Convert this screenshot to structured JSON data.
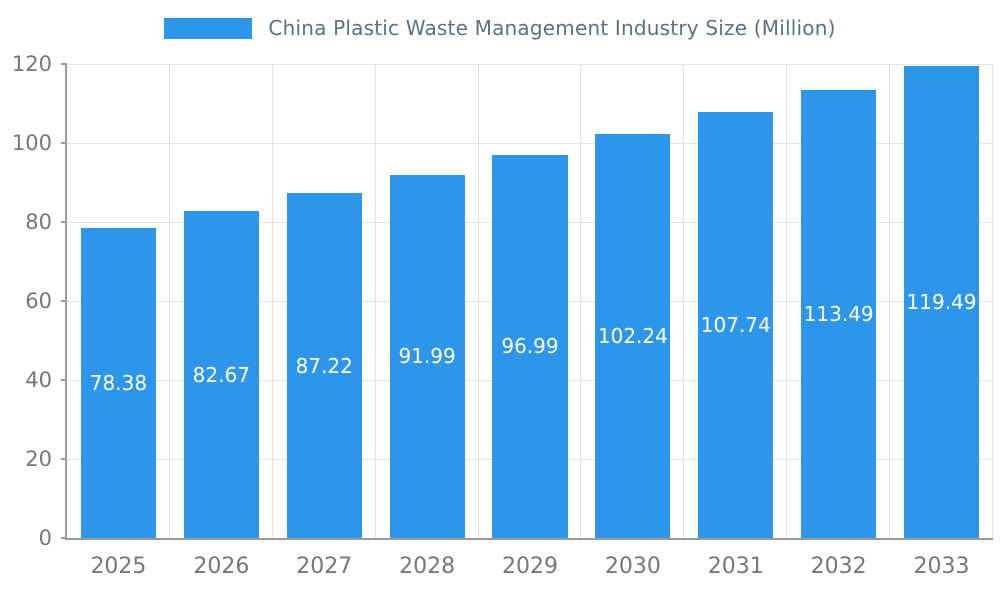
{
  "chart_data": {
    "type": "bar",
    "title": "China Plastic Waste Management Industry Size (Million)",
    "categories": [
      "2025",
      "2026",
      "2027",
      "2028",
      "2029",
      "2030",
      "2031",
      "2032",
      "2033"
    ],
    "values": [
      78.38,
      82.67,
      87.22,
      91.99,
      96.99,
      102.24,
      107.74,
      113.49,
      119.49
    ],
    "value_labels": [
      "78.38",
      "82.67",
      "87.22",
      "91.99",
      "96.99",
      "102.24",
      "107.74",
      "113.49",
      "119.49"
    ],
    "xlabel": "",
    "ylabel": "",
    "ylim": [
      0,
      120
    ],
    "yticks": [
      0,
      20,
      40,
      60,
      80,
      100,
      120
    ],
    "grid": true,
    "legend_position": "top",
    "bar_color": "#2e96ea",
    "value_label_color": "#ffffff",
    "tick_label_color": "#777777",
    "title_color": "#5a7184"
  }
}
